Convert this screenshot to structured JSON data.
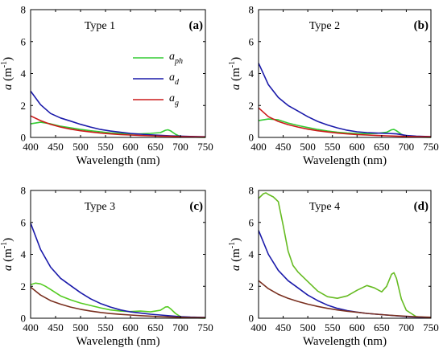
{
  "chart_data": [
    {
      "type": "line",
      "panel_label": "(a)",
      "title": "Type 1",
      "xlabel": "Wavelength (nm)",
      "ylabel": "a (m-1)",
      "xlim": [
        400,
        750
      ],
      "ylim": [
        0,
        8
      ],
      "xticks": [
        400,
        450,
        500,
        550,
        600,
        650,
        700,
        750
      ],
      "yticks": [
        0,
        2,
        4,
        6,
        8
      ],
      "legend": "top-center",
      "series": [
        {
          "name": "a_ph",
          "color": "#33cc33",
          "x": [
            400,
            420,
            440,
            460,
            480,
            500,
            520,
            540,
            560,
            580,
            600,
            620,
            640,
            660,
            670,
            675,
            680,
            690,
            700,
            720,
            750
          ],
          "y": [
            0.85,
            0.95,
            0.85,
            0.7,
            0.6,
            0.5,
            0.42,
            0.35,
            0.28,
            0.24,
            0.22,
            0.22,
            0.25,
            0.3,
            0.45,
            0.48,
            0.42,
            0.2,
            0.05,
            0.02,
            0.0
          ]
        },
        {
          "name": "a_d",
          "color": "#1a1aaa",
          "x": [
            400,
            420,
            440,
            460,
            480,
            500,
            520,
            540,
            560,
            580,
            600,
            620,
            640,
            660,
            680,
            700,
            720,
            750
          ],
          "y": [
            2.9,
            2.05,
            1.5,
            1.22,
            1.02,
            0.82,
            0.65,
            0.5,
            0.4,
            0.32,
            0.25,
            0.2,
            0.16,
            0.13,
            0.1,
            0.08,
            0.06,
            0.04
          ]
        },
        {
          "name": "a_g",
          "color": "#cc1a1a",
          "x": [
            400,
            420,
            440,
            460,
            480,
            500,
            520,
            540,
            560,
            580,
            600,
            620,
            640,
            660,
            680,
            700,
            720,
            750
          ],
          "y": [
            1.35,
            1.05,
            0.82,
            0.65,
            0.52,
            0.42,
            0.34,
            0.27,
            0.22,
            0.18,
            0.15,
            0.12,
            0.1,
            0.08,
            0.07,
            0.05,
            0.04,
            0.03
          ]
        }
      ]
    },
    {
      "type": "line",
      "panel_label": "(b)",
      "title": "Type 2",
      "xlabel": "Wavelength (nm)",
      "ylabel": "a (m-1)",
      "xlim": [
        400,
        750
      ],
      "ylim": [
        0,
        8
      ],
      "xticks": [
        400,
        450,
        500,
        550,
        600,
        650,
        700,
        750
      ],
      "yticks": [
        0,
        2,
        4,
        6,
        8
      ],
      "series": [
        {
          "name": "a_ph",
          "color": "#33cc33",
          "x": [
            400,
            420,
            440,
            460,
            480,
            500,
            520,
            540,
            560,
            580,
            600,
            620,
            640,
            660,
            670,
            675,
            680,
            690,
            700,
            720,
            750
          ],
          "y": [
            1.05,
            1.15,
            1.1,
            0.9,
            0.75,
            0.62,
            0.5,
            0.4,
            0.32,
            0.27,
            0.24,
            0.23,
            0.25,
            0.32,
            0.48,
            0.5,
            0.42,
            0.2,
            0.05,
            0.02,
            0.0
          ]
        },
        {
          "name": "a_d",
          "color": "#1a1aaa",
          "x": [
            400,
            420,
            440,
            460,
            480,
            500,
            520,
            540,
            560,
            580,
            600,
            620,
            640,
            660,
            680,
            700,
            720,
            750
          ],
          "y": [
            4.65,
            3.3,
            2.5,
            2.0,
            1.65,
            1.3,
            1.0,
            0.78,
            0.6,
            0.45,
            0.35,
            0.3,
            0.27,
            0.25,
            0.22,
            0.12,
            0.08,
            0.05
          ]
        },
        {
          "name": "a_g",
          "color": "#cc1a1a",
          "x": [
            400,
            420,
            440,
            460,
            480,
            500,
            520,
            540,
            560,
            580,
            600,
            620,
            640,
            660,
            680,
            700,
            720,
            750
          ],
          "y": [
            1.85,
            1.3,
            1.0,
            0.8,
            0.65,
            0.52,
            0.42,
            0.34,
            0.27,
            0.22,
            0.18,
            0.15,
            0.12,
            0.1,
            0.08,
            0.06,
            0.05,
            0.04
          ]
        }
      ]
    },
    {
      "type": "line",
      "panel_label": "(c)",
      "title": "Type 3",
      "xlabel": "Wavelength (nm)",
      "ylabel": "a (m-1)",
      "xlim": [
        400,
        750
      ],
      "ylim": [
        0,
        8
      ],
      "xticks": [
        400,
        450,
        500,
        550,
        600,
        650,
        700,
        750
      ],
      "yticks": [
        0,
        2,
        4,
        6,
        8
      ],
      "series": [
        {
          "name": "a_ph",
          "color": "#55cc22",
          "x": [
            400,
            410,
            420,
            430,
            440,
            460,
            480,
            500,
            520,
            540,
            560,
            580,
            600,
            620,
            640,
            660,
            670,
            675,
            680,
            690,
            700,
            720,
            750
          ],
          "y": [
            2.1,
            2.2,
            2.15,
            2.0,
            1.8,
            1.4,
            1.15,
            0.95,
            0.8,
            0.65,
            0.52,
            0.45,
            0.42,
            0.45,
            0.4,
            0.5,
            0.7,
            0.72,
            0.6,
            0.3,
            0.1,
            0.03,
            0.0
          ]
        },
        {
          "name": "a_d",
          "color": "#1a1aaa",
          "x": [
            400,
            420,
            440,
            460,
            480,
            500,
            520,
            540,
            560,
            580,
            600,
            620,
            640,
            660,
            680,
            700,
            720,
            750
          ],
          "y": [
            5.95,
            4.3,
            3.2,
            2.5,
            2.05,
            1.6,
            1.22,
            0.92,
            0.7,
            0.52,
            0.4,
            0.32,
            0.25,
            0.2,
            0.15,
            0.1,
            0.07,
            0.05
          ]
        },
        {
          "name": "a_g",
          "color": "#7a3020",
          "x": [
            400,
            420,
            440,
            460,
            480,
            500,
            520,
            540,
            560,
            580,
            600,
            620,
            640,
            660,
            680,
            700,
            720,
            750
          ],
          "y": [
            1.95,
            1.45,
            1.1,
            0.88,
            0.7,
            0.56,
            0.45,
            0.36,
            0.29,
            0.24,
            0.2,
            0.16,
            0.13,
            0.1,
            0.08,
            0.06,
            0.05,
            0.04
          ]
        }
      ]
    },
    {
      "type": "line",
      "panel_label": "(d)",
      "title": "Type 4",
      "xlabel": "Wavelength (nm)",
      "ylabel": "a (m-1)",
      "xlim": [
        400,
        750
      ],
      "ylim": [
        0,
        8
      ],
      "xticks": [
        400,
        450,
        500,
        550,
        600,
        650,
        700,
        750
      ],
      "yticks": [
        0,
        2,
        4,
        6,
        8
      ],
      "series": [
        {
          "name": "a_ph",
          "color": "#66bb22",
          "x": [
            400,
            410,
            415,
            420,
            430,
            440,
            450,
            460,
            470,
            480,
            500,
            520,
            540,
            560,
            580,
            600,
            620,
            635,
            650,
            660,
            670,
            675,
            680,
            690,
            700,
            720,
            750
          ],
          "y": [
            7.5,
            7.8,
            7.85,
            7.75,
            7.6,
            7.3,
            5.8,
            4.2,
            3.3,
            2.9,
            2.3,
            1.7,
            1.35,
            1.25,
            1.4,
            1.75,
            2.05,
            1.9,
            1.65,
            2.0,
            2.75,
            2.85,
            2.5,
            1.2,
            0.5,
            0.1,
            0.02
          ]
        },
        {
          "name": "a_d",
          "color": "#1a1aaa",
          "x": [
            400,
            420,
            440,
            460,
            480,
            500,
            520,
            540,
            560,
            580,
            600,
            620,
            640,
            660,
            680,
            700,
            720,
            750
          ],
          "y": [
            5.5,
            4.0,
            3.0,
            2.35,
            1.9,
            1.45,
            1.1,
            0.82,
            0.62,
            0.48,
            0.38,
            0.3,
            0.25,
            0.2,
            0.15,
            0.1,
            0.07,
            0.05
          ]
        },
        {
          "name": "a_g",
          "color": "#7a3020",
          "x": [
            400,
            420,
            440,
            460,
            480,
            500,
            520,
            540,
            560,
            580,
            600,
            620,
            640,
            660,
            680,
            700,
            720,
            750
          ],
          "y": [
            2.35,
            1.85,
            1.5,
            1.25,
            1.05,
            0.88,
            0.74,
            0.62,
            0.52,
            0.44,
            0.37,
            0.3,
            0.25,
            0.2,
            0.16,
            0.12,
            0.09,
            0.06
          ]
        }
      ]
    }
  ]
}
